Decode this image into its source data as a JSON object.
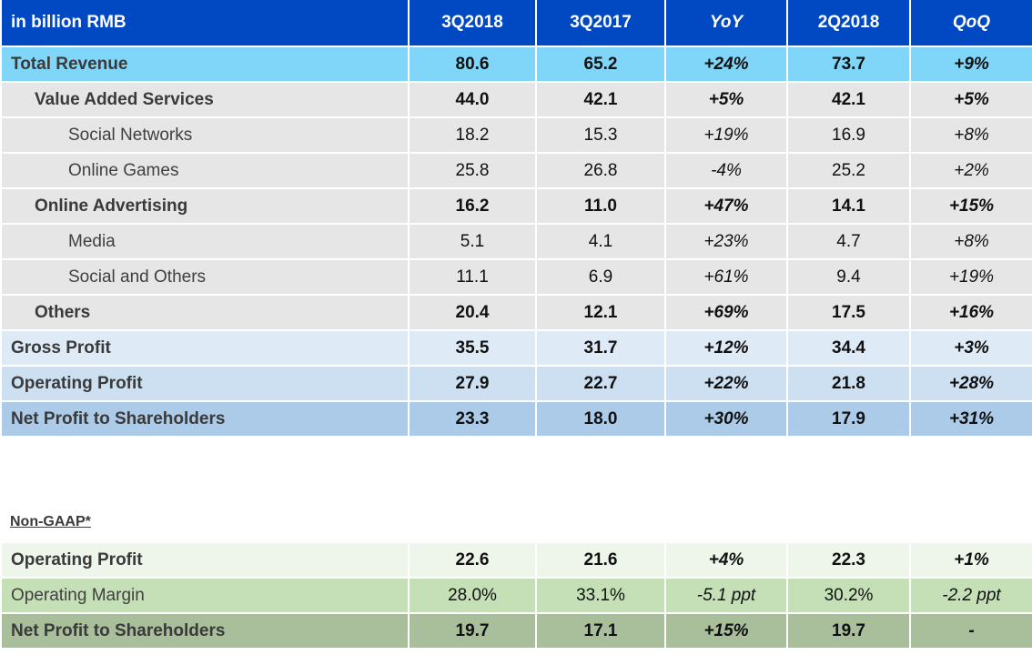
{
  "main_table": {
    "headers": [
      "in billion RMB",
      "3Q2018",
      "3Q2017",
      "YoY",
      "2Q2018",
      "QoQ"
    ],
    "rows": [
      {
        "label": "Total Revenue",
        "values": [
          "80.6",
          "65.2",
          "+24%",
          "73.7",
          "+9%"
        ]
      },
      {
        "label": "Value Added Services",
        "values": [
          "44.0",
          "42.1",
          "+5%",
          "42.1",
          "+5%"
        ]
      },
      {
        "label": "Social Networks",
        "values": [
          "18.2",
          "15.3",
          "+19%",
          "16.9",
          "+8%"
        ]
      },
      {
        "label": "Online Games",
        "values": [
          "25.8",
          "26.8",
          "-4%",
          "25.2",
          "+2%"
        ]
      },
      {
        "label": "Online Advertising",
        "values": [
          "16.2",
          "11.0",
          "+47%",
          "14.1",
          "+15%"
        ]
      },
      {
        "label": "Media",
        "values": [
          "5.1",
          "4.1",
          "+23%",
          "4.7",
          "+8%"
        ]
      },
      {
        "label": "Social and Others",
        "values": [
          "11.1",
          "6.9",
          "+61%",
          "9.4",
          "+19%"
        ]
      },
      {
        "label": "Others",
        "values": [
          "20.4",
          "12.1",
          "+69%",
          "17.5",
          "+16%"
        ]
      },
      {
        "label": "Gross Profit",
        "values": [
          "35.5",
          "31.7",
          "+12%",
          "34.4",
          "+3%"
        ]
      },
      {
        "label": "Operating Profit",
        "values": [
          "27.9",
          "22.7",
          "+22%",
          "21.8",
          "+28%"
        ]
      },
      {
        "label": "Net Profit to Shareholders",
        "values": [
          "23.3",
          "18.0",
          "+30%",
          "17.9",
          "+31%"
        ]
      }
    ]
  },
  "nongaap": {
    "title": "Non-GAAP*",
    "rows": [
      {
        "label": "Operating Profit",
        "values": [
          "22.6",
          "21.6",
          "+4%",
          "22.3",
          "+1%"
        ]
      },
      {
        "label": "Operating Margin",
        "values": [
          "28.0%",
          "33.1%",
          "-5.1 ppt",
          "30.2%",
          "-2.2 ppt"
        ]
      },
      {
        "label": "Net Profit to Shareholders",
        "values": [
          "19.7",
          "17.1",
          "+15%",
          "19.7",
          "-"
        ]
      }
    ]
  },
  "colors": {
    "header_bg": "#0049c2",
    "total_revenue_bg": "#80d6f8",
    "segment_bg": "#e6e6e6",
    "gross_profit_bg": "#deeaf6",
    "operating_profit_bg": "#cce0f2",
    "net_profit_bg": "#abcbe8",
    "nongaap_op_bg": "#eef6ec",
    "nongaap_margin_bg": "#c5dfb7",
    "nongaap_net_bg": "#a9be9a"
  }
}
